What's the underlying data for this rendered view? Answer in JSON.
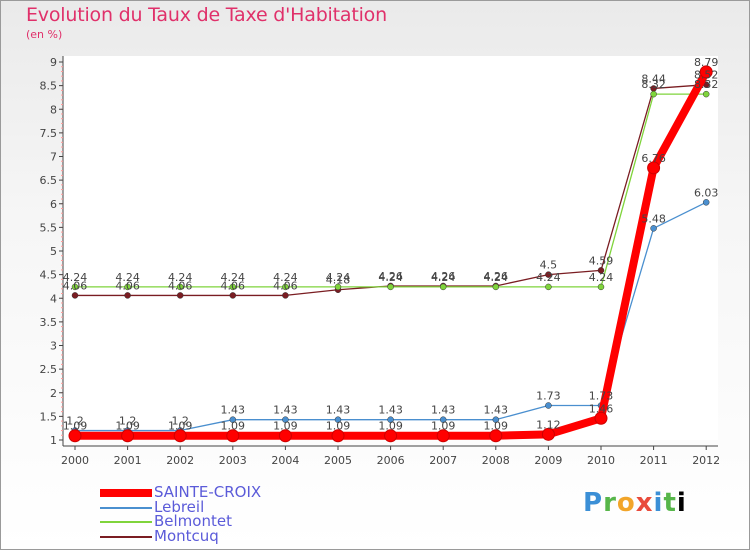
{
  "chart_data": {
    "type": "line",
    "title": "Evolution du Taux de Taxe d'Habitation",
    "subtitle": "(en %)",
    "xlabel": "",
    "ylabel": "",
    "ylim": [
      1,
      9
    ],
    "yticks": [
      1,
      1.5,
      2,
      2.5,
      3,
      3.5,
      4,
      4.5,
      5,
      5.5,
      6,
      6.5,
      7,
      7.5,
      8,
      8.5,
      9
    ],
    "x": [
      "2000",
      "2001",
      "2002",
      "2003",
      "2004",
      "2005",
      "2006",
      "2007",
      "2008",
      "2009",
      "2010",
      "2011",
      "2012"
    ],
    "series": [
      {
        "name": "Montcuq",
        "color": "#7a1d22",
        "values": [
          4.06,
          4.06,
          4.06,
          4.06,
          4.06,
          4.18,
          4.26,
          4.26,
          4.26,
          4.5,
          4.59,
          8.44,
          8.52
        ],
        "labels": [
          "4.06",
          "4.06",
          "4.06",
          "4.06",
          "4.06",
          "4.18",
          "4.26",
          "4.26",
          "4.26",
          "4.5",
          "4.59",
          "8.44",
          "8.52"
        ]
      },
      {
        "name": "Belmontet",
        "color": "#7fd43b",
        "values": [
          4.24,
          4.24,
          4.24,
          4.24,
          4.24,
          4.24,
          4.24,
          4.24,
          4.24,
          4.24,
          4.24,
          8.32,
          8.32
        ],
        "labels": [
          "4.24",
          "4.24",
          "4.24",
          "4.24",
          "4.24",
          "4.24",
          "4.24",
          "4.24",
          "4.24",
          "4.24",
          "4.24",
          "8.32",
          "8.32"
        ]
      },
      {
        "name": "Lebreil",
        "color": "#4a8fcf",
        "values": [
          1.2,
          1.2,
          1.2,
          1.43,
          1.43,
          1.43,
          1.43,
          1.43,
          1.43,
          1.73,
          1.73,
          5.48,
          6.03
        ],
        "labels": [
          "1.2",
          "1.2",
          "1.2",
          "1.43",
          "1.43",
          "1.43",
          "1.43",
          "1.43",
          "1.43",
          "1.73",
          "1.73",
          "5.48",
          "6.03"
        ]
      },
      {
        "name": "SAINTE-CROIX",
        "color": "#ff0000",
        "values": [
          1.09,
          1.09,
          1.09,
          1.09,
          1.09,
          1.09,
          1.09,
          1.09,
          1.09,
          1.12,
          1.46,
          6.76,
          8.79
        ],
        "labels": [
          "1.09",
          "1.09",
          "1.09",
          "1.09",
          "1.09",
          "1.09",
          "1.09",
          "1.09",
          "1.09",
          "1.12",
          "1.46",
          "6.76",
          "8.79"
        ]
      }
    ],
    "legend": [
      "SAINTE-CROIX",
      "Lebreil",
      "Belmontet",
      "Montcuq"
    ],
    "legend_position": "bottom-left"
  },
  "logo": {
    "letters": [
      "P",
      "r",
      "o",
      "x",
      "i",
      "t",
      "i"
    ]
  }
}
